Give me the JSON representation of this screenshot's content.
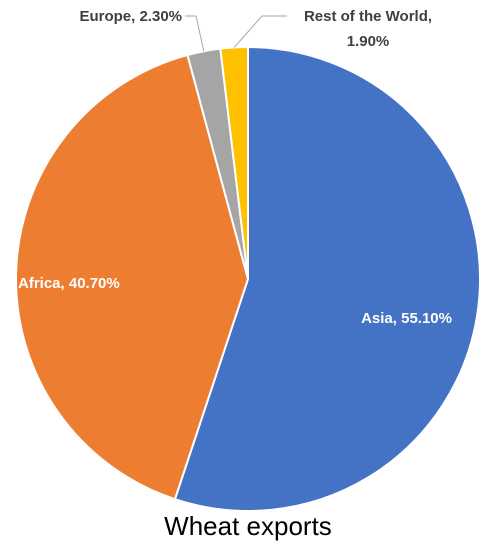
{
  "chart_data": {
    "type": "pie",
    "title": "Wheat exports",
    "start_angle_deg": 0,
    "direction": "clockwise",
    "slices": [
      {
        "label": "Asia",
        "value": 55.1,
        "display": "Asia, 55.10%",
        "color": "#4472C4"
      },
      {
        "label": "Africa",
        "value": 40.7,
        "display": "Africa, 40.70%",
        "color": "#ED7D31"
      },
      {
        "label": "Europe",
        "value": 2.3,
        "display": "Europe, 2.30%",
        "color": "#A5A5A5"
      },
      {
        "label": "Rest of the World",
        "value": 1.9,
        "display_line1": "Rest of the World,",
        "display_line2": "1.90%",
        "color": "#FFC000"
      }
    ],
    "label_colors": {
      "inside": "#FFFFFF",
      "outside": "#404040"
    },
    "leader_line_color": "#A6A6A6",
    "slice_border_color": "#FFFFFF",
    "legend": "none"
  }
}
